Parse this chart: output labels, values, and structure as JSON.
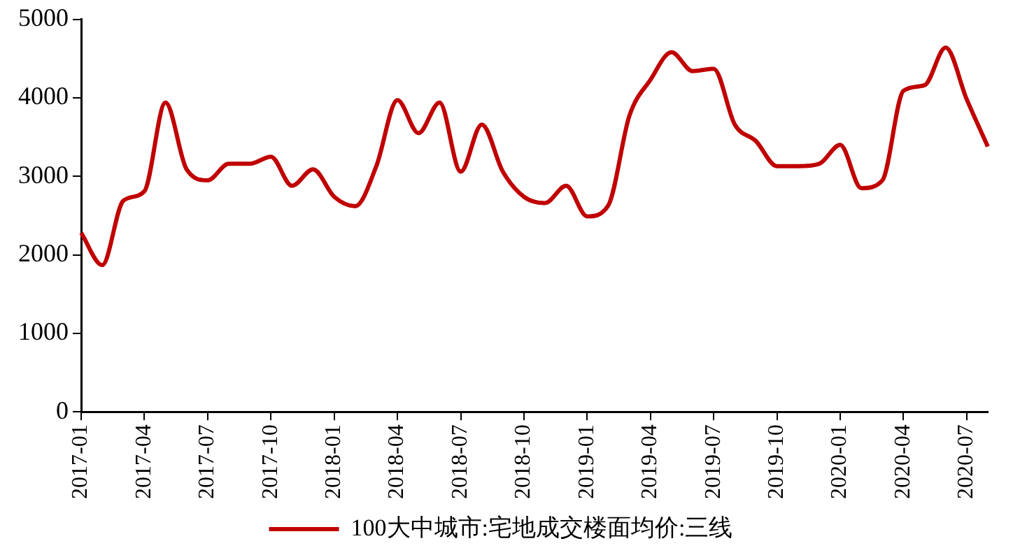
{
  "chart_data": {
    "type": "line",
    "categories": [
      "2017-01",
      null,
      null,
      "2017-04",
      null,
      null,
      "2017-07",
      null,
      null,
      "2017-10",
      null,
      null,
      "2018-01",
      null,
      null,
      "2018-04",
      null,
      null,
      "2018-07",
      null,
      null,
      "2018-10",
      null,
      null,
      "2019-01",
      null,
      null,
      "2019-04",
      null,
      null,
      "2019-07",
      null,
      null,
      "2019-10",
      null,
      null,
      "2020-01",
      null,
      null,
      "2020-04",
      null,
      null,
      "2020-07",
      null
    ],
    "series": [
      {
        "name": "100大中城市:宅地成交楼面均价:三线",
        "color": "#c00000",
        "values": [
          2280,
          1870,
          2690,
          2810,
          3940,
          3090,
          2950,
          3160,
          3160,
          3250,
          2880,
          3090,
          2740,
          2620,
          3130,
          3970,
          3550,
          3940,
          3060,
          3660,
          3060,
          2740,
          2660,
          2880,
          2490,
          2630,
          3770,
          4230,
          4580,
          4340,
          4370,
          3660,
          3450,
          3130,
          3130,
          3160,
          3400,
          2850,
          2950,
          4090,
          4160,
          4640,
          3980,
          3380
        ]
      }
    ],
    "ylim": [
      0,
      5000
    ],
    "yticks": [
      0,
      1000,
      2000,
      3000,
      4000,
      5000
    ],
    "grid": false,
    "legend": "bottom",
    "marker": "none",
    "line_style": "solid"
  }
}
